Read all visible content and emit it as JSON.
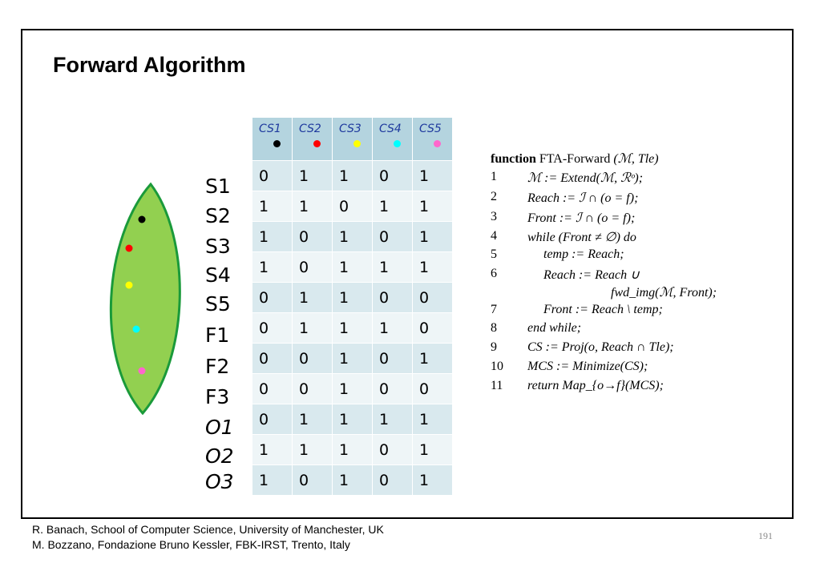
{
  "slide": {
    "title": "Forward Algorithm",
    "page_number": "191"
  },
  "footer": {
    "line1": "R. Banach, School of  Computer Science, University of Manchester, UK",
    "line2": "M. Bozzano, Fondazione Bruno Kessler, FBK-IRST, Trento, Italy"
  },
  "leaf": {
    "fill_color": "#92d050",
    "stroke_color": "#1a9a3a",
    "dots": [
      "#000000",
      "#ff0000",
      "#ffff00",
      "#00ffff",
      "#ff66cc"
    ]
  },
  "table": {
    "headers": [
      {
        "label": "CS1",
        "dot_color": "#000000"
      },
      {
        "label": "CS2",
        "dot_color": "#ff0000"
      },
      {
        "label": "CS3",
        "dot_color": "#ffff00"
      },
      {
        "label": "CS4",
        "dot_color": "#00ffff"
      },
      {
        "label": "CS5",
        "dot_color": "#ff66cc"
      }
    ],
    "row_labels": [
      "S1",
      "S2",
      "S3",
      "S4",
      "S5",
      "F1",
      "F2",
      "F3",
      "O1",
      "O2",
      "O3"
    ],
    "rows": [
      [
        "0",
        "1",
        "1",
        "0",
        "1"
      ],
      [
        "1",
        "1",
        "0",
        "1",
        "1"
      ],
      [
        "1",
        "0",
        "1",
        "0",
        "1"
      ],
      [
        "1",
        "0",
        "1",
        "1",
        "1"
      ],
      [
        "0",
        "1",
        "1",
        "0",
        "0"
      ],
      [
        "0",
        "1",
        "1",
        "1",
        "0"
      ],
      [
        "0",
        "0",
        "1",
        "0",
        "1"
      ],
      [
        "0",
        "0",
        "1",
        "0",
        "0"
      ],
      [
        "0",
        "1",
        "1",
        "1",
        "1"
      ],
      [
        "1",
        "1",
        "1",
        "0",
        "1"
      ],
      [
        "1",
        "0",
        "1",
        "0",
        "1"
      ]
    ]
  },
  "algorithm": {
    "header_keyword": "function",
    "header_name": "FTA-Forward",
    "header_args": "(ℳ, Tle)",
    "lines": [
      {
        "num": "1",
        "text": "ℳ := Extend(ℳ, ℛᵒ);"
      },
      {
        "num": "2",
        "text": "Reach := ℐ ∩ (o = f);"
      },
      {
        "num": "3",
        "text": "Front := ℐ ∩ (o = f);"
      },
      {
        "num": "4",
        "text": "while (Front ≠ ∅) do"
      },
      {
        "num": "5",
        "text": "temp := Reach;"
      },
      {
        "num": "6",
        "text": "Reach := Reach ∪"
      },
      {
        "num": "",
        "text": "fwd_img(ℳ, Front);"
      },
      {
        "num": "7",
        "text": "Front := Reach \\ temp;"
      },
      {
        "num": "8",
        "text": "end while;"
      },
      {
        "num": "9",
        "text": "CS := Proj(o, Reach ∩ Tle);"
      },
      {
        "num": "10",
        "text": "MCS := Minimize(CS);"
      },
      {
        "num": "11",
        "text": "return Map_{o→f}(MCS);"
      }
    ]
  }
}
